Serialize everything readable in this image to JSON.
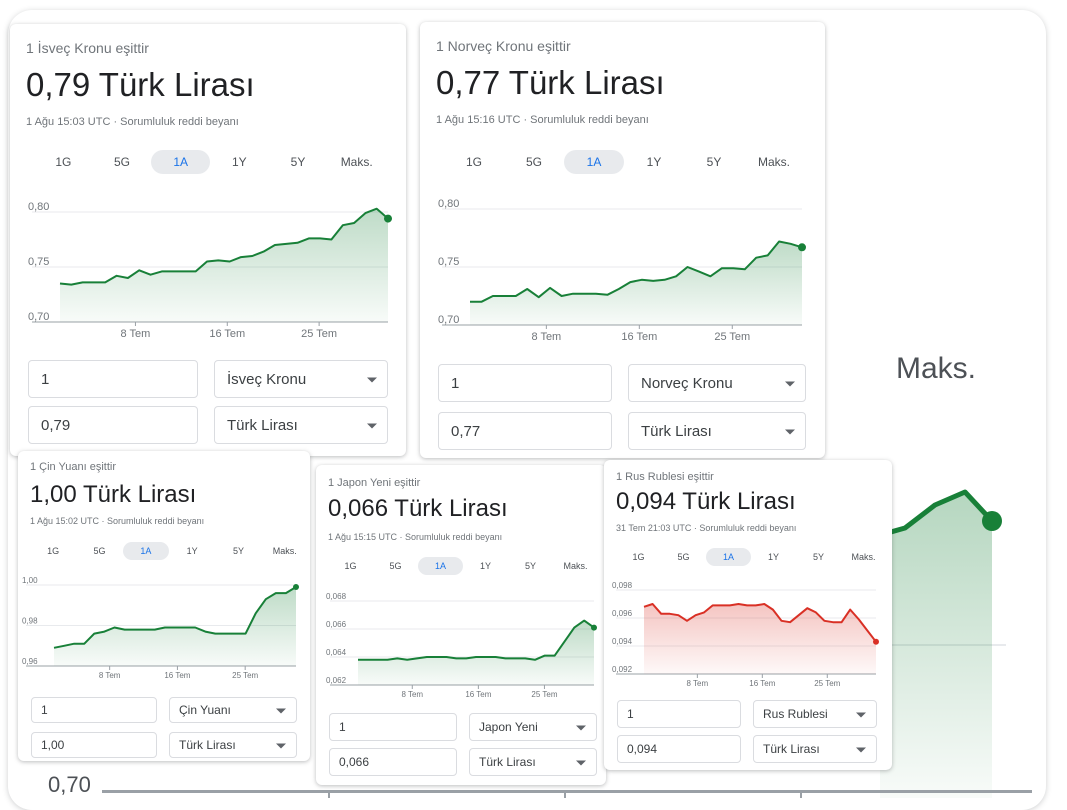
{
  "background": {
    "max_label": "Maks.",
    "axis_value": "0,70"
  },
  "cards": [
    {
      "equals_label": "1 İsveç Kronu eşittir",
      "value": "0,79 Türk Lirası",
      "meta": "1 Ağu 15:03 UTC · Sorumluluk reddi beyanı",
      "ranges": [
        "1G",
        "5G",
        "1A",
        "1Y",
        "5Y",
        "Maks."
      ],
      "active_range": "1A",
      "amount_from": "1",
      "currency_from": "İsveç Kronu",
      "amount_to": "0,79",
      "currency_to": "Türk Lirası",
      "chart_data": {
        "type": "area",
        "color": "#188038",
        "x_labels": [
          "8 Tem",
          "16 Tem",
          "25 Tem"
        ],
        "y_ticks": [
          "0,80",
          "0,75",
          "0,70"
        ],
        "ylim": [
          0.7,
          0.8
        ],
        "grid": true,
        "values": [
          0.735,
          0.734,
          0.736,
          0.736,
          0.736,
          0.742,
          0.74,
          0.747,
          0.743,
          0.746,
          0.746,
          0.746,
          0.746,
          0.755,
          0.756,
          0.755,
          0.759,
          0.76,
          0.764,
          0.77,
          0.771,
          0.772,
          0.776,
          0.776,
          0.775,
          0.788,
          0.79,
          0.799,
          0.803,
          0.794
        ]
      }
    },
    {
      "equals_label": "1 Norveç Kronu eşittir",
      "value": "0,77 Türk Lirası",
      "meta": "1 Ağu 15:16 UTC · Sorumluluk reddi beyanı",
      "ranges": [
        "1G",
        "5G",
        "1A",
        "1Y",
        "5Y",
        "Maks."
      ],
      "active_range": "1A",
      "amount_from": "1",
      "currency_from": "Norveç Kronu",
      "amount_to": "0,77",
      "currency_to": "Türk Lirası",
      "chart_data": {
        "type": "area",
        "color": "#188038",
        "x_labels": [
          "8 Tem",
          "16 Tem",
          "25 Tem"
        ],
        "y_ticks": [
          "0,80",
          "0,75",
          "0,70"
        ],
        "ylim": [
          0.7,
          0.8
        ],
        "grid": true,
        "values": [
          0.72,
          0.72,
          0.725,
          0.725,
          0.725,
          0.731,
          0.724,
          0.732,
          0.725,
          0.727,
          0.727,
          0.727,
          0.726,
          0.731,
          0.737,
          0.739,
          0.738,
          0.739,
          0.742,
          0.75,
          0.746,
          0.742,
          0.749,
          0.749,
          0.748,
          0.758,
          0.76,
          0.772,
          0.77,
          0.767
        ]
      }
    },
    {
      "equals_label": "1 Çin Yuanı eşittir",
      "value": "1,00 Türk Lirası",
      "meta": "1 Ağu 15:02 UTC · Sorumluluk reddi beyanı",
      "ranges": [
        "1G",
        "5G",
        "1A",
        "1Y",
        "5Y",
        "Maks."
      ],
      "active_range": "1A",
      "amount_from": "1",
      "currency_from": "Çin Yuanı",
      "amount_to": "1,00",
      "currency_to": "Türk Lirası",
      "chart_data": {
        "type": "area",
        "color": "#188038",
        "x_labels": [
          "8 Tem",
          "16 Tem",
          "25 Tem"
        ],
        "y_ticks": [
          "1,00",
          "0,98",
          "0,96"
        ],
        "ylim": [
          0.96,
          1.0
        ],
        "grid": true,
        "values": [
          0.969,
          0.97,
          0.971,
          0.971,
          0.976,
          0.977,
          0.979,
          0.978,
          0.978,
          0.978,
          0.978,
          0.979,
          0.979,
          0.979,
          0.979,
          0.977,
          0.976,
          0.976,
          0.976,
          0.976,
          0.986,
          0.993,
          0.996,
          0.996,
          0.999
        ]
      }
    },
    {
      "equals_label": "1 Japon Yeni eşittir",
      "value": "0,066 Türk Lirası",
      "meta": "1 Ağu 15:15 UTC · Sorumluluk reddi beyanı",
      "ranges": [
        "1G",
        "5G",
        "1A",
        "1Y",
        "5Y",
        "Maks."
      ],
      "active_range": "1A",
      "amount_from": "1",
      "currency_from": "Japon Yeni",
      "amount_to": "0,066",
      "currency_to": "Türk Lirası",
      "chart_data": {
        "type": "area",
        "color": "#188038",
        "x_labels": [
          "8 Tem",
          "16 Tem",
          "25 Tem"
        ],
        "y_ticks": [
          "0,068",
          "0,066",
          "0,064",
          "0,062"
        ],
        "ylim": [
          0.062,
          0.068
        ],
        "grid": true,
        "values": [
          0.0638,
          0.0638,
          0.0638,
          0.0638,
          0.0639,
          0.0638,
          0.0639,
          0.064,
          0.064,
          0.064,
          0.0639,
          0.0639,
          0.064,
          0.064,
          0.064,
          0.0639,
          0.0639,
          0.0639,
          0.0638,
          0.0641,
          0.0641,
          0.0651,
          0.0661,
          0.0666,
          0.0661
        ]
      }
    },
    {
      "equals_label": "1 Rus Rublesi eşittir",
      "value": "0,094 Türk Lirası",
      "meta": "31 Tem 21:03 UTC · Sorumluluk reddi beyanı",
      "ranges": [
        "1G",
        "5G",
        "1A",
        "1Y",
        "5Y",
        "Maks."
      ],
      "active_range": "1A",
      "amount_from": "1",
      "currency_from": "Rus Rublesi",
      "amount_to": "0,094",
      "currency_to": "Türk Lirası",
      "chart_data": {
        "type": "area",
        "color": "#d93025",
        "x_labels": [
          "8 Tem",
          "16 Tem",
          "25 Tem"
        ],
        "y_ticks": [
          "0,098",
          "0,096",
          "0,094",
          "0,092"
        ],
        "ylim": [
          0.092,
          0.098
        ],
        "grid": true,
        "values": [
          0.0968,
          0.097,
          0.0963,
          0.0963,
          0.0962,
          0.0958,
          0.0962,
          0.0964,
          0.0969,
          0.0969,
          0.0969,
          0.097,
          0.0969,
          0.0969,
          0.097,
          0.0966,
          0.0958,
          0.0957,
          0.0962,
          0.0967,
          0.0964,
          0.0958,
          0.0957,
          0.0957,
          0.0966,
          0.0959,
          0.0951,
          0.0943
        ]
      }
    }
  ]
}
